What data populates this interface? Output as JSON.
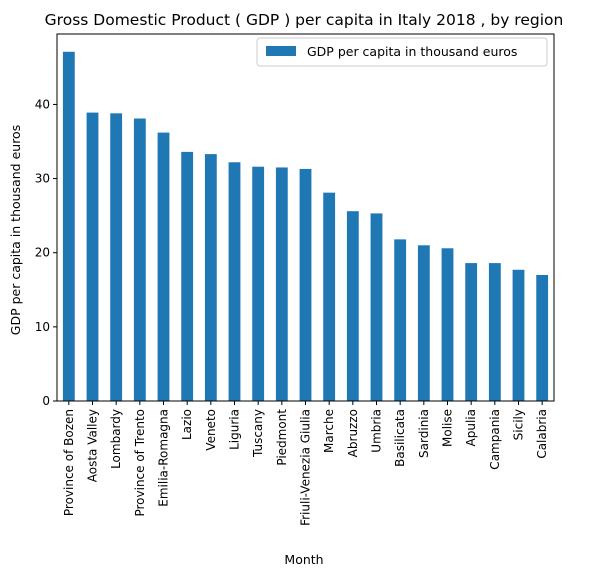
{
  "chart_data": {
    "type": "bar",
    "title": "Gross Domestic Product ( GDP ) per capita in Italy 2018 , by region",
    "xlabel": "Month",
    "ylabel": "GDP per capita in thousand euros",
    "ylim": [
      0,
      49.5
    ],
    "yticks": [
      0,
      10,
      20,
      30,
      40
    ],
    "grid": false,
    "legend_position": "top-right",
    "bar_color": "#1f77b4",
    "series": [
      {
        "name": "GDP per capita in thousand euros",
        "values": [
          47.1,
          38.9,
          38.8,
          38.1,
          36.2,
          33.6,
          33.3,
          32.2,
          31.6,
          31.5,
          31.3,
          28.1,
          25.6,
          25.3,
          21.8,
          21.0,
          20.6,
          18.6,
          18.6,
          17.7,
          17.0
        ]
      }
    ],
    "categories": [
      "Province of Bozen",
      "Aosta Valley",
      "Lombardy",
      "Province of Trento",
      "Emilia-Romagna",
      "Lazio",
      "Veneto",
      "Liguria",
      "Tuscany",
      "Piedmont",
      "Friuli-Venezia Giulia",
      "Marche",
      "Abruzzo",
      "Umbria",
      "Basilicata",
      "Sardinia",
      "Molise",
      "Apulia",
      "Campania",
      "Sicily",
      "Calabria"
    ]
  }
}
